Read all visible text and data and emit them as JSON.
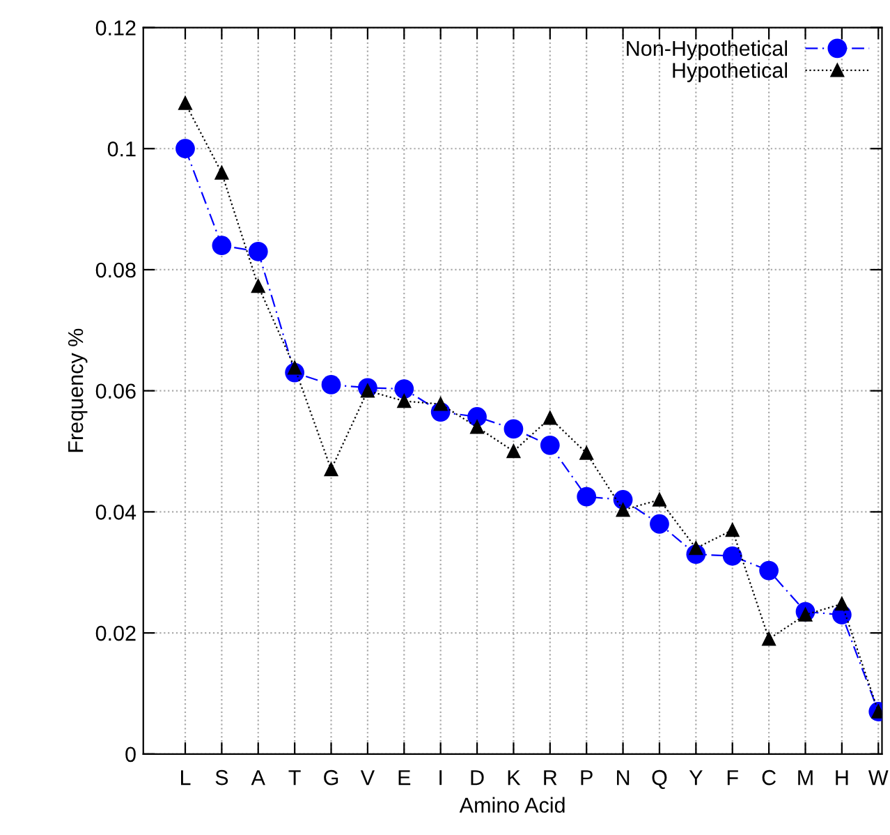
{
  "chart_data": {
    "type": "line",
    "xlabel": "Amino Acid",
    "ylabel": "Frequency %",
    "categories": [
      "L",
      "S",
      "A",
      "T",
      "G",
      "V",
      "E",
      "I",
      "D",
      "K",
      "R",
      "P",
      "N",
      "Q",
      "Y",
      "F",
      "C",
      "M",
      "H",
      "W"
    ],
    "series": [
      {
        "name": "Non-Hypothetical",
        "color": "#0000ff",
        "marker": "circle",
        "line_style": "dashdot",
        "values": [
          0.1,
          0.084,
          0.083,
          0.063,
          0.061,
          0.0605,
          0.0603,
          0.0565,
          0.0557,
          0.0537,
          0.051,
          0.0425,
          0.042,
          0.038,
          0.033,
          0.0327,
          0.0303,
          0.0235,
          0.023,
          0.007
        ]
      },
      {
        "name": "Hypothetical",
        "color": "#000000",
        "marker": "triangle",
        "line_style": "dotted",
        "values": [
          0.1075,
          0.096,
          0.0773,
          0.0638,
          0.047,
          0.06,
          0.0583,
          0.0578,
          0.054,
          0.05,
          0.0555,
          0.0497,
          0.0403,
          0.042,
          0.034,
          0.037,
          0.019,
          0.023,
          0.0248,
          0.007
        ]
      }
    ],
    "ylim": [
      0,
      0.12
    ],
    "yticks": [
      0,
      0.02,
      0.04,
      0.06,
      0.08,
      0.1,
      0.12
    ],
    "grid": true,
    "legend": "top right"
  }
}
